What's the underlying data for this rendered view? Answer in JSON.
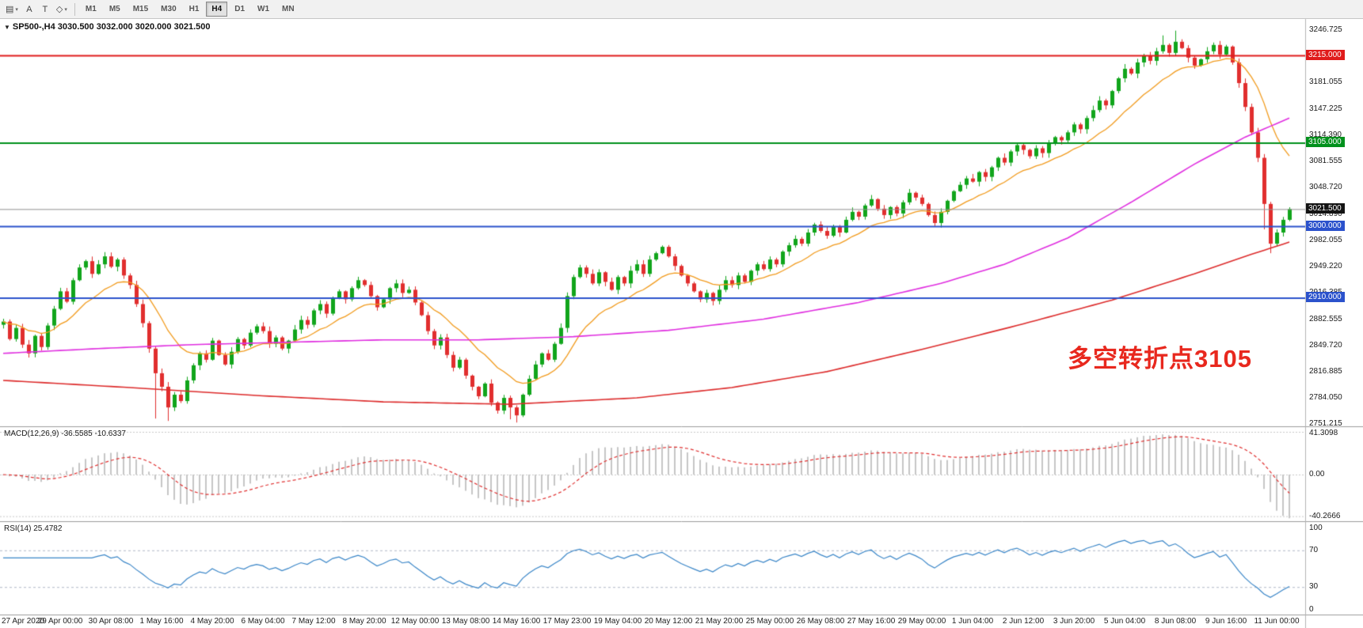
{
  "toolbar": {
    "tools": [
      {
        "name": "chart-window-icon",
        "glyph": "▤",
        "dropdown": true
      },
      {
        "name": "cursor-tool-icon",
        "glyph": "A",
        "dropdown": false
      },
      {
        "name": "text-tool-icon",
        "glyph": "T",
        "dropdown": false
      },
      {
        "name": "objects-tool-icon",
        "glyph": "◇",
        "dropdown": true
      }
    ],
    "timeframes": [
      {
        "label": "M1",
        "active": false
      },
      {
        "label": "M5",
        "active": false
      },
      {
        "label": "M15",
        "active": false
      },
      {
        "label": "M30",
        "active": false
      },
      {
        "label": "H1",
        "active": false
      },
      {
        "label": "H4",
        "active": true
      },
      {
        "label": "D1",
        "active": false
      },
      {
        "label": "W1",
        "active": false
      },
      {
        "label": "MN",
        "active": false
      }
    ]
  },
  "chart": {
    "title": "SP500-,H4  3030.500 3032.000 3020.000 3021.500",
    "annotation": {
      "text": "多空转折点3105",
      "color": "#e8281e"
    },
    "axis_labels": [
      "3246.725",
      "3181.055",
      "3147.225",
      "3114.390",
      "3081.555",
      "3048.720",
      "3014.890",
      "2982.055",
      "2949.220",
      "2916.385",
      "2882.555",
      "2849.720",
      "2816.885",
      "2784.050",
      "2751.215"
    ],
    "hlines": [
      {
        "value": 3215.0,
        "label": "3215.000",
        "color": "#e01b1b"
      },
      {
        "value": 3105.0,
        "label": "3105.000",
        "color": "#00911c"
      },
      {
        "value": 3000.0,
        "label": "3000.000",
        "color": "#2b52cc"
      },
      {
        "value": 2910.0,
        "label": "2910.000",
        "color": "#2b52cc"
      }
    ],
    "price_line": {
      "value": 3021.5,
      "label": "3021.500",
      "line_color": "#909090",
      "badge_color": "#141414"
    }
  },
  "macd": {
    "label": "MACD(12,26,9) -36.5585 -10.6337",
    "value_main": -36.5585,
    "value_signal": -10.6337,
    "axis": [
      {
        "label": "41.3098",
        "value": 41.3098
      },
      {
        "label": "0.00",
        "value": 0
      },
      {
        "label": "-40.2666",
        "value": -40.2666
      }
    ]
  },
  "rsi": {
    "label": "RSI(14) 25.4782",
    "value": 25.4782,
    "axis": [
      {
        "label": "100",
        "value": 100
      },
      {
        "label": "70",
        "value": 70
      },
      {
        "label": "30",
        "value": 30
      },
      {
        "label": "0",
        "value": 0
      }
    ],
    "levels": [
      70,
      30
    ]
  },
  "time_axis": [
    "27 Apr 2020",
    "29 Apr 00:00",
    "30 Apr 08:00",
    "1 May 16:00",
    "4 May 20:00",
    "6 May 04:00",
    "7 May 12:00",
    "8 May 20:00",
    "12 May 00:00",
    "13 May 08:00",
    "14 May 16:00",
    "17 May 23:00",
    "19 May 04:00",
    "20 May 12:00",
    "21 May 20:00",
    "25 May 00:00",
    "26 May 08:00",
    "27 May 16:00",
    "29 May 00:00",
    "1 Jun 04:00",
    "2 Jun 12:00",
    "3 Jun 20:00",
    "5 Jun 04:00",
    "8 Jun 08:00",
    "9 Jun 16:00",
    "11 Jun 00:00"
  ],
  "chart_data": {
    "type": "candlestick",
    "symbol": "SP500-",
    "timeframe": "H4",
    "current_ohlc": {
      "open": 3030.5,
      "high": 3032.0,
      "low": 3020.0,
      "close": 3021.5
    },
    "price_axis_range": [
      2751.215,
      3246.725
    ],
    "closes": [
      2880,
      2858,
      2872,
      2851,
      2840,
      2862,
      2848,
      2875,
      2896,
      2918,
      2905,
      2932,
      2948,
      2956,
      2940,
      2952,
      2962,
      2949,
      2958,
      2938,
      2926,
      2902,
      2878,
      2846,
      2815,
      2798,
      2772,
      2788,
      2780,
      2806,
      2825,
      2840,
      2832,
      2856,
      2838,
      2826,
      2842,
      2858,
      2850,
      2866,
      2874,
      2868,
      2852,
      2860,
      2846,
      2856,
      2870,
      2882,
      2876,
      2894,
      2902,
      2890,
      2910,
      2918,
      2908,
      2922,
      2932,
      2926,
      2912,
      2898,
      2908,
      2922,
      2928,
      2916,
      2920,
      2904,
      2888,
      2868,
      2850,
      2860,
      2838,
      2822,
      2832,
      2812,
      2798,
      2786,
      2802,
      2778,
      2768,
      2784,
      2772,
      2762,
      2788,
      2808,
      2826,
      2840,
      2832,
      2852,
      2872,
      2912,
      2936,
      2948,
      2940,
      2928,
      2942,
      2930,
      2920,
      2936,
      2928,
      2944,
      2952,
      2940,
      2958,
      2966,
      2974,
      2962,
      2950,
      2938,
      2928,
      2918,
      2908,
      2916,
      2906,
      2920,
      2932,
      2926,
      2938,
      2930,
      2944,
      2952,
      2946,
      2958,
      2952,
      2968,
      2976,
      2984,
      2978,
      2992,
      3002,
      2994,
      2988,
      3000,
      2992,
      3008,
      3018,
      3012,
      3026,
      3034,
      3022,
      3014,
      3024,
      3016,
      3030,
      3042,
      3036,
      3028,
      3014,
      3004,
      3018,
      3032,
      3044,
      3052,
      3060,
      3056,
      3068,
      3062,
      3074,
      3086,
      3080,
      3094,
      3102,
      3096,
      3088,
      3098,
      3092,
      3104,
      3112,
      3108,
      3118,
      3128,
      3122,
      3136,
      3146,
      3158,
      3152,
      3170,
      3186,
      3198,
      3192,
      3206,
      3214,
      3208,
      3220,
      3228,
      3218,
      3232,
      3224,
      3212,
      3202,
      3210,
      3220,
      3228,
      3216,
      3226,
      3206,
      3180,
      3150,
      3118,
      3086,
      3028,
      2978,
      2992,
      3008,
      3021.5
    ],
    "extremes": {
      "24": {
        "low": 2758
      },
      "26": {
        "low": 2755
      },
      "80": {
        "low": 2757
      },
      "81": {
        "low": 2753
      },
      "183": {
        "high": 3240
      },
      "185": {
        "high": 3246
      },
      "199": {
        "low": 2996
      },
      "200": {
        "low": 2966
      }
    },
    "colors": {
      "up": "#11a51b",
      "down": "#e12e2e"
    },
    "overlays": {
      "ma_fast": {
        "type": "ema",
        "period": 14,
        "color": "#f29b1d"
      },
      "ma_mid": {
        "color": "#e02ee0",
        "waypoints": [
          [
            0,
            2840
          ],
          [
            15,
            2846
          ],
          [
            30,
            2851
          ],
          [
            45,
            2854
          ],
          [
            60,
            2857
          ],
          [
            75,
            2857
          ],
          [
            90,
            2861
          ],
          [
            105,
            2869
          ],
          [
            120,
            2883
          ],
          [
            135,
            2904
          ],
          [
            148,
            2928
          ],
          [
            158,
            2952
          ],
          [
            168,
            2985
          ],
          [
            178,
            3030
          ],
          [
            188,
            3078
          ],
          [
            196,
            3112
          ],
          [
            203,
            3136
          ]
        ]
      },
      "ma_slow": {
        "color": "#dd2c2c",
        "waypoints": [
          [
            0,
            2806
          ],
          [
            20,
            2797
          ],
          [
            40,
            2787
          ],
          [
            60,
            2779
          ],
          [
            80,
            2776
          ],
          [
            100,
            2784
          ],
          [
            115,
            2797
          ],
          [
            130,
            2817
          ],
          [
            145,
            2845
          ],
          [
            160,
            2875
          ],
          [
            175,
            2907
          ],
          [
            188,
            2940
          ],
          [
            196,
            2962
          ],
          [
            203,
            2980
          ]
        ]
      }
    },
    "indicators": {
      "macd": {
        "fast": 12,
        "slow": 26,
        "signal": 9,
        "hist_color": "#c6c6c6",
        "signal_color": "#e03030"
      },
      "rsi": {
        "period": 14,
        "color": "#3a86c8",
        "level_color": "#b0b8c8"
      }
    }
  }
}
